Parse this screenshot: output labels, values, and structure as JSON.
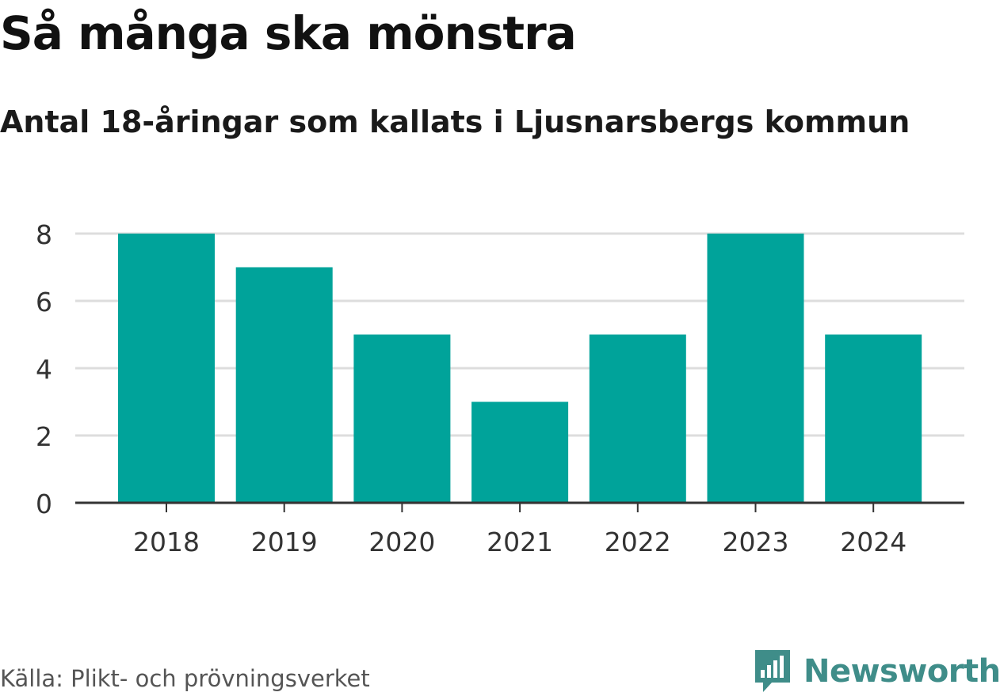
{
  "header": {
    "title": "Så många ska mönstra",
    "subtitle": "Antal 18-åringar som kallats i Ljusnarsbergs kommun"
  },
  "footer": {
    "source": "Källa: Plikt- och prövningsverket",
    "brand": "Newsworthy",
    "brand_icon": "newsworthy-logo-icon"
  },
  "colors": {
    "bar": "#00a39a",
    "grid": "#dddddd",
    "axis": "#333333",
    "brand": "#3f8d89"
  },
  "chart_data": {
    "type": "bar",
    "title": "Så många ska mönstra",
    "subtitle": "Antal 18-åringar som kallats i Ljusnarsbergs kommun",
    "categories": [
      "2018",
      "2019",
      "2020",
      "2021",
      "2022",
      "2023",
      "2024"
    ],
    "values": [
      8,
      7,
      5,
      3,
      5,
      8,
      5
    ],
    "xlabel": "",
    "ylabel": "",
    "ylim": [
      0,
      8
    ],
    "yticks": [
      0,
      2,
      4,
      6,
      8
    ],
    "grid": true,
    "legend": "none"
  }
}
